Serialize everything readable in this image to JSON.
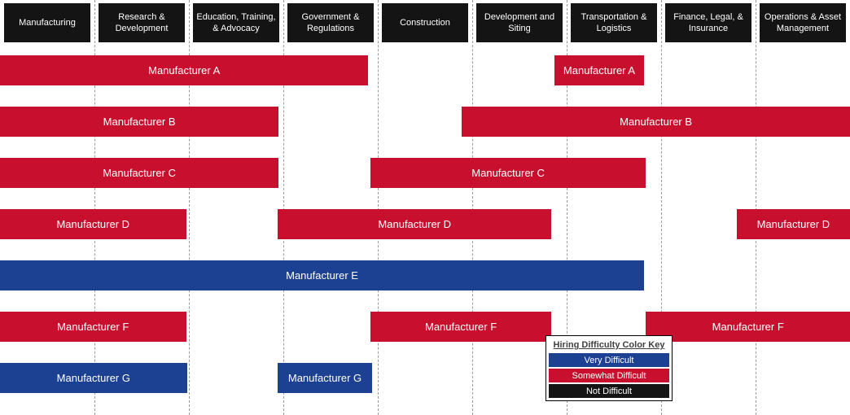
{
  "chart_data": {
    "type": "gantt",
    "title": "",
    "categories": [
      "Manufacturing",
      "Research & Development",
      "Education, Training, & Advocacy",
      "Government & Regulations",
      "Construction",
      "Development and Siting",
      "Transportation & Logistics",
      "Finance, Legal, & Insurance",
      "Operations & Asset Management"
    ],
    "rows": [
      {
        "name": "Manufacturer A",
        "difficulty": "Somewhat Difficult",
        "color": "#C8102E",
        "segments": [
          {
            "label": "Manufacturer A",
            "start": 0,
            "end": 3.9,
            "covers": [
              "Manufacturing",
              "Research & Development",
              "Education, Training, & Advocacy",
              "Government & Regulations"
            ]
          },
          {
            "label": "Manufacturer A",
            "start": 5.87,
            "end": 6.82,
            "covers": [
              "Transportation & Logistics"
            ]
          }
        ]
      },
      {
        "name": "Manufacturer B",
        "difficulty": "Somewhat Difficult",
        "color": "#C8102E",
        "segments": [
          {
            "label": "Manufacturer B",
            "start": 0,
            "end": 2.95,
            "covers": [
              "Manufacturing",
              "Research & Development",
              "Education, Training, & Advocacy"
            ]
          },
          {
            "label": "Manufacturer B",
            "start": 4.89,
            "end": 9,
            "covers": [
              "Development and Siting",
              "Transportation & Logistics",
              "Finance, Legal, & Insurance",
              "Operations & Asset Management"
            ]
          }
        ]
      },
      {
        "name": "Manufacturer C",
        "difficulty": "Somewhat Difficult",
        "color": "#C8102E",
        "segments": [
          {
            "label": "Manufacturer C",
            "start": 0,
            "end": 2.95,
            "covers": [
              "Manufacturing",
              "Research & Development",
              "Education, Training, & Advocacy"
            ]
          },
          {
            "label": "Manufacturer C",
            "start": 3.92,
            "end": 6.84,
            "covers": [
              "Construction",
              "Development and Siting",
              "Transportation & Logistics"
            ]
          }
        ]
      },
      {
        "name": "Manufacturer D",
        "difficulty": "Somewhat Difficult",
        "color": "#C8102E",
        "segments": [
          {
            "label": "Manufacturer D",
            "start": 0,
            "end": 1.97,
            "covers": [
              "Manufacturing",
              "Research & Development"
            ]
          },
          {
            "label": "Manufacturer D",
            "start": 2.94,
            "end": 5.84,
            "covers": [
              "Government & Regulations",
              "Construction",
              "Development and Siting"
            ]
          },
          {
            "label": "Manufacturer D",
            "start": 7.8,
            "end": 9,
            "covers": [
              "Operations & Asset Management"
            ]
          }
        ]
      },
      {
        "name": "Manufacturer E",
        "difficulty": "Very Difficult",
        "color": "#1C4193",
        "segments": [
          {
            "label": "Manufacturer E",
            "start": 0,
            "end": 6.82,
            "covers": [
              "Manufacturing",
              "Research & Development",
              "Education, Training, & Advocacy",
              "Government & Regulations",
              "Construction",
              "Development and Siting",
              "Transportation & Logistics"
            ]
          }
        ]
      },
      {
        "name": "Manufacturer F",
        "difficulty": "Somewhat Difficult",
        "color": "#C8102E",
        "segments": [
          {
            "label": "Manufacturer F",
            "start": 0,
            "end": 1.97,
            "covers": [
              "Manufacturing",
              "Research & Development"
            ]
          },
          {
            "label": "Manufacturer F",
            "start": 3.92,
            "end": 5.84,
            "covers": [
              "Construction",
              "Development and Siting"
            ]
          },
          {
            "label": "Manufacturer F",
            "start": 6.84,
            "end": 9,
            "covers": [
              "Finance, Legal, & Insurance",
              "Operations & Asset Management"
            ]
          }
        ]
      },
      {
        "name": "Manufacturer G",
        "difficulty": "Very Difficult",
        "color": "#1C4193",
        "segments": [
          {
            "label": "Manufacturer G",
            "start": 0,
            "end": 1.98,
            "covers": [
              "Manufacturing",
              "Research & Development"
            ]
          },
          {
            "label": "Manufacturer G",
            "start": 2.94,
            "end": 3.94,
            "covers": [
              "Government & Regulations"
            ]
          }
        ]
      }
    ],
    "legend": {
      "title": "Hiring Difficulty Color Key",
      "entries": [
        {
          "label": "Very Difficult",
          "color": "#1C4193"
        },
        {
          "label": "Somewhat Difficult",
          "color": "#C8102E"
        },
        {
          "label": "Not Difficult",
          "color": "#141414"
        }
      ]
    },
    "colors": {
      "header_bg": "#141414",
      "gridline": "#9B9B9B"
    }
  }
}
